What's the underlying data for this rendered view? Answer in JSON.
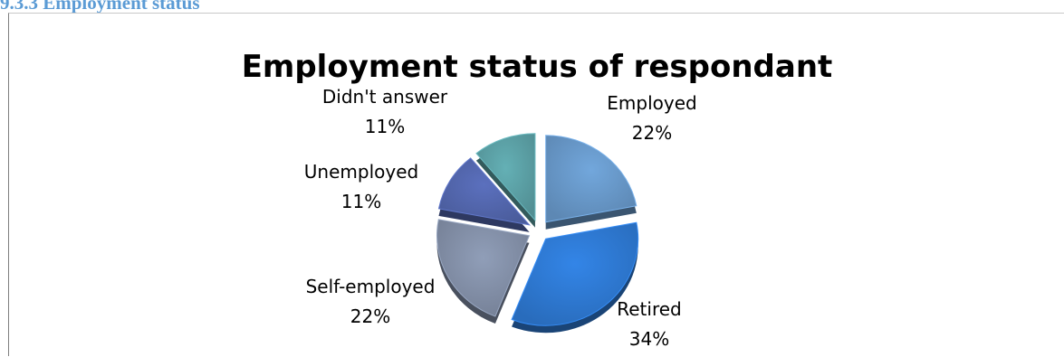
{
  "section_heading": "9.3.3 Employment status",
  "chart_data": {
    "type": "pie",
    "title": "Employment status of respondant",
    "categories": [
      "Employed",
      "Retired",
      "Self-employed",
      "Unemployed",
      "Didn't answer"
    ],
    "values": [
      22,
      34,
      22,
      11,
      11
    ],
    "labels": [
      "22%",
      "34%",
      "22%",
      "11%",
      "11%"
    ],
    "colors": [
      "#6a9bcc",
      "#2f7bd6",
      "#8592aa",
      "#5468b0",
      "#5da3a8"
    ],
    "exploded": true,
    "style": "3d",
    "legend": "none"
  }
}
